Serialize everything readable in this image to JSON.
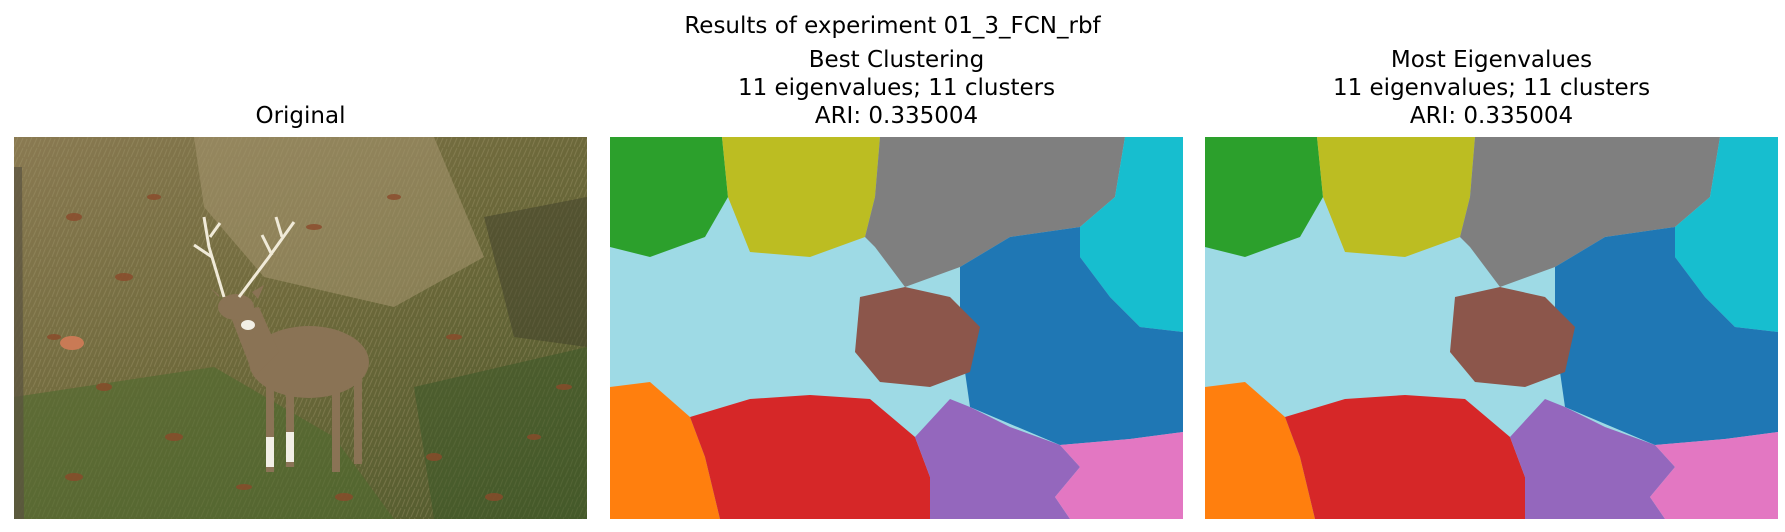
{
  "figure": {
    "suptitle": "Results of experiment 01_3_FCN_rbf"
  },
  "panels": [
    {
      "title_lines": [
        "Original"
      ],
      "content": "photo"
    },
    {
      "title_lines": [
        "Best Clustering",
        "11 eigenvalues; 11 clusters",
        "ARI: 0.335004"
      ],
      "content": "segmentation"
    },
    {
      "title_lines": [
        "Most Eigenvalues",
        "11 eigenvalues; 11 clusters",
        "ARI: 0.335004"
      ],
      "content": "segmentation"
    }
  ],
  "colors": {
    "green": "#2ca02c",
    "olive": "#bcbd22",
    "gray": "#7f7f7f",
    "cyan": "#17becf",
    "light_blue": "#9edae5",
    "brown": "#8c564b",
    "blue": "#1f77b4",
    "orange": "#ff7f0e",
    "red": "#d62728",
    "purple": "#9467bd",
    "pink": "#e377c2"
  }
}
